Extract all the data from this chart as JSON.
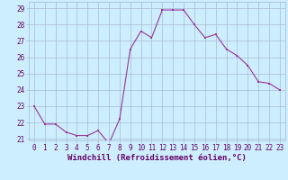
{
  "x": [
    0,
    1,
    2,
    3,
    4,
    5,
    6,
    7,
    8,
    9,
    10,
    11,
    12,
    13,
    14,
    15,
    16,
    17,
    18,
    19,
    20,
    21,
    22,
    23
  ],
  "y": [
    23.0,
    21.9,
    21.9,
    21.4,
    21.2,
    21.2,
    21.5,
    20.7,
    22.2,
    26.5,
    27.6,
    27.2,
    28.9,
    28.9,
    28.9,
    28.0,
    27.2,
    27.4,
    26.5,
    26.1,
    25.5,
    24.5,
    24.4,
    24.0
  ],
  "line_color": "#993399",
  "marker_color": "#993399",
  "bg_color": "#cceeff",
  "grid_color": "#aabbcc",
  "ylim_min": 20.9,
  "ylim_max": 29.4,
  "yticks": [
    21,
    22,
    23,
    24,
    25,
    26,
    27,
    28,
    29
  ],
  "xticks": [
    0,
    1,
    2,
    3,
    4,
    5,
    6,
    7,
    8,
    9,
    10,
    11,
    12,
    13,
    14,
    15,
    16,
    17,
    18,
    19,
    20,
    21,
    22,
    23
  ],
  "xlabel": "Windchill (Refroidissement éolien,°C)",
  "tick_color": "#660066",
  "tick_fontsize": 5.5,
  "label_fontsize": 6.5
}
